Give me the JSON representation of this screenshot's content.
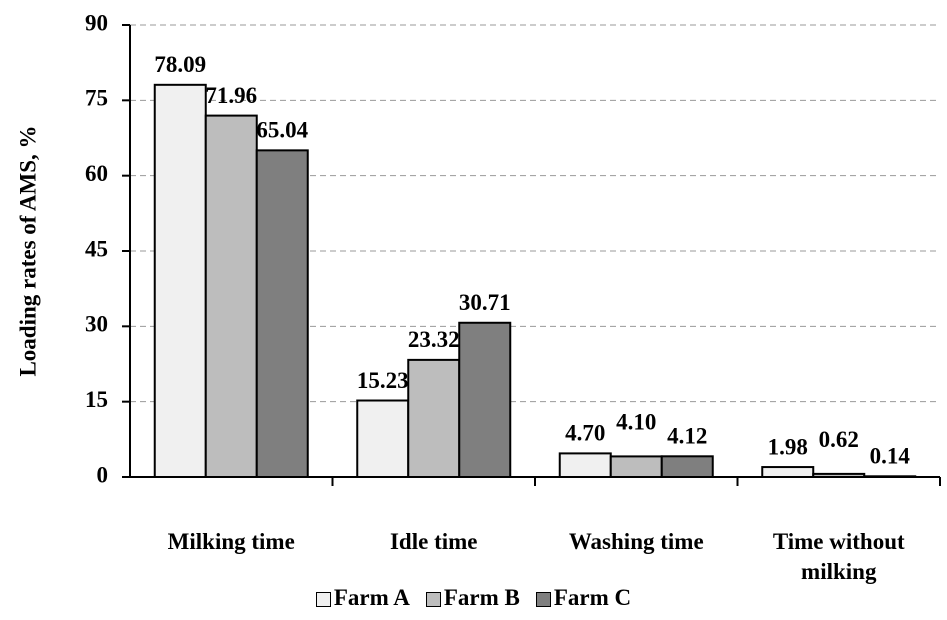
{
  "chart_data": {
    "type": "bar",
    "y_label": "Loading rates of AMS, %",
    "categories": [
      "Milking time",
      "Idle time",
      "Washing time",
      "Time without milking"
    ],
    "series": [
      {
        "name": "Farm A",
        "color": "#f0f0f0",
        "values": [
          78.09,
          15.23,
          4.7,
          1.98
        ],
        "value_labels": [
          "78.09",
          "15.23",
          "4.70",
          "1.98"
        ]
      },
      {
        "name": "Farm B",
        "color": "#bdbdbd",
        "values": [
          71.96,
          23.32,
          4.1,
          0.62
        ],
        "value_labels": [
          "71.96",
          "23.32",
          "4.10",
          "0.62"
        ]
      },
      {
        "name": "Farm C",
        "color": "#7f7f7f",
        "values": [
          65.04,
          30.71,
          4.12,
          0.14
        ],
        "value_labels": [
          "65.04",
          "30.71",
          "4.12",
          "0.14"
        ]
      }
    ],
    "ylim": [
      0,
      90
    ],
    "yticks": [
      0,
      15,
      30,
      45,
      60,
      75,
      90
    ],
    "grid": true,
    "legend": "bottom"
  }
}
